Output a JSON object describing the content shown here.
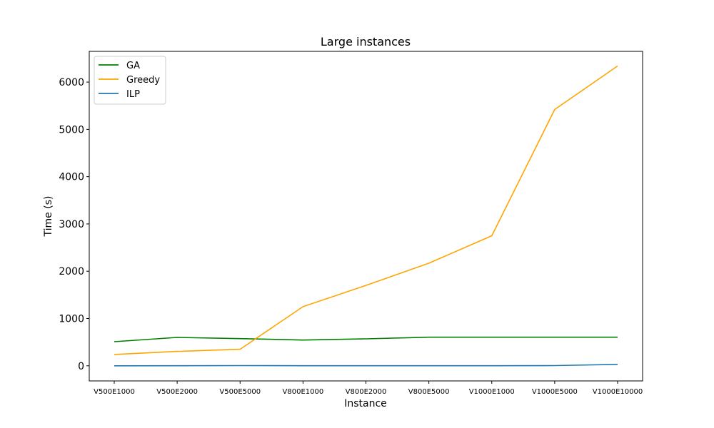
{
  "chart_data": {
    "type": "line",
    "title": "Large instances",
    "xlabel": "Instance",
    "ylabel": "Time (s)",
    "categories": [
      "V500E1000",
      "V500E2000",
      "V500E5000",
      "V800E1000",
      "V800E2000",
      "V800E5000",
      "V1000E1000",
      "V1000E5000",
      "V1000E10000"
    ],
    "yticks": [
      0,
      1000,
      2000,
      3000,
      4000,
      5000,
      6000
    ],
    "ylim": [
      -320,
      6650
    ],
    "grid": false,
    "legend_position": "top-left",
    "series": [
      {
        "name": "GA",
        "color": "#008000",
        "values": [
          510,
          600,
          575,
          545,
          570,
          605,
          605,
          605,
          605
        ]
      },
      {
        "name": "Greedy",
        "color": "#ffa500",
        "values": [
          240,
          305,
          350,
          1250,
          1700,
          2170,
          2750,
          5420,
          6340
        ]
      },
      {
        "name": "ILP",
        "color": "#1f77b4",
        "values": [
          0,
          2,
          5,
          2,
          2,
          2,
          2,
          5,
          30
        ]
      }
    ]
  }
}
